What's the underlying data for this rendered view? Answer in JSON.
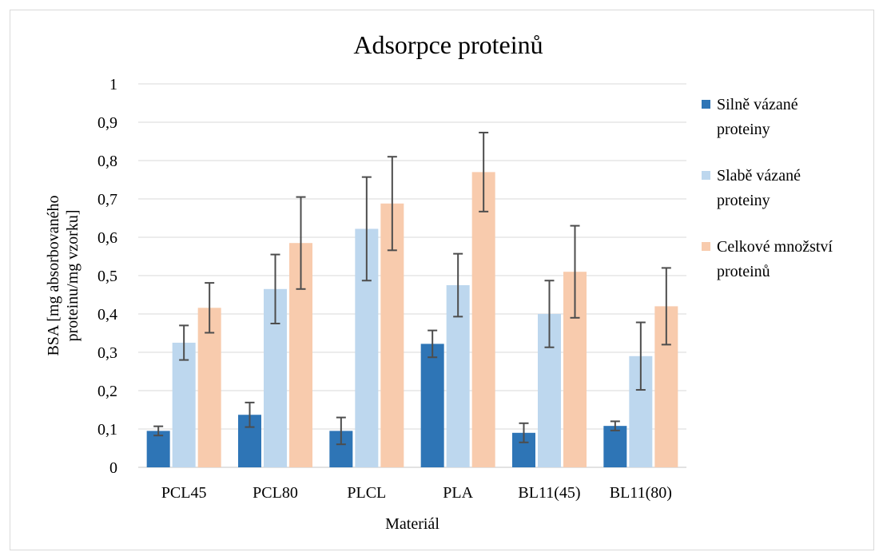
{
  "chart_data": {
    "type": "bar",
    "title": "Adsorpce proteinů",
    "xlabel": "Materiál",
    "ylabel_lines": [
      "BSA [mg absorbovaného",
      "proteinu/mg vzorku]"
    ],
    "ylim": [
      0,
      1
    ],
    "yticks": [
      "0",
      "0,1",
      "0,2",
      "0,3",
      "0,4",
      "0,5",
      "0,6",
      "0,7",
      "0,8",
      "0,9",
      "1"
    ],
    "categories": [
      "PCL45",
      "PCL80",
      "PLCL",
      "PLA",
      "BL11(45)",
      "BL11(80)"
    ],
    "grid": true,
    "legend_position": "right",
    "series": [
      {
        "name": "Silně vázané proteiny",
        "legend_lines": [
          "Silně vázané",
          "proteiny"
        ],
        "color": "#2e75b6",
        "values": [
          0.095,
          0.137,
          0.095,
          0.322,
          0.09,
          0.108
        ],
        "errors": [
          0.012,
          0.032,
          0.035,
          0.035,
          0.025,
          0.012
        ]
      },
      {
        "name": "Slabě vázané proteiny",
        "legend_lines": [
          "Slabě vázané",
          "proteiny"
        ],
        "color": "#bdd7ee",
        "values": [
          0.325,
          0.465,
          0.622,
          0.475,
          0.4,
          0.29
        ],
        "errors": [
          0.045,
          0.09,
          0.135,
          0.082,
          0.087,
          0.088
        ]
      },
      {
        "name": "Celkové množství proteinů",
        "legend_lines": [
          "Celkové množství",
          "proteinů"
        ],
        "color": "#f8cbad",
        "values": [
          0.416,
          0.585,
          0.688,
          0.77,
          0.51,
          0.42
        ],
        "errors": [
          0.065,
          0.12,
          0.122,
          0.103,
          0.12,
          0.1
        ]
      }
    ]
  }
}
